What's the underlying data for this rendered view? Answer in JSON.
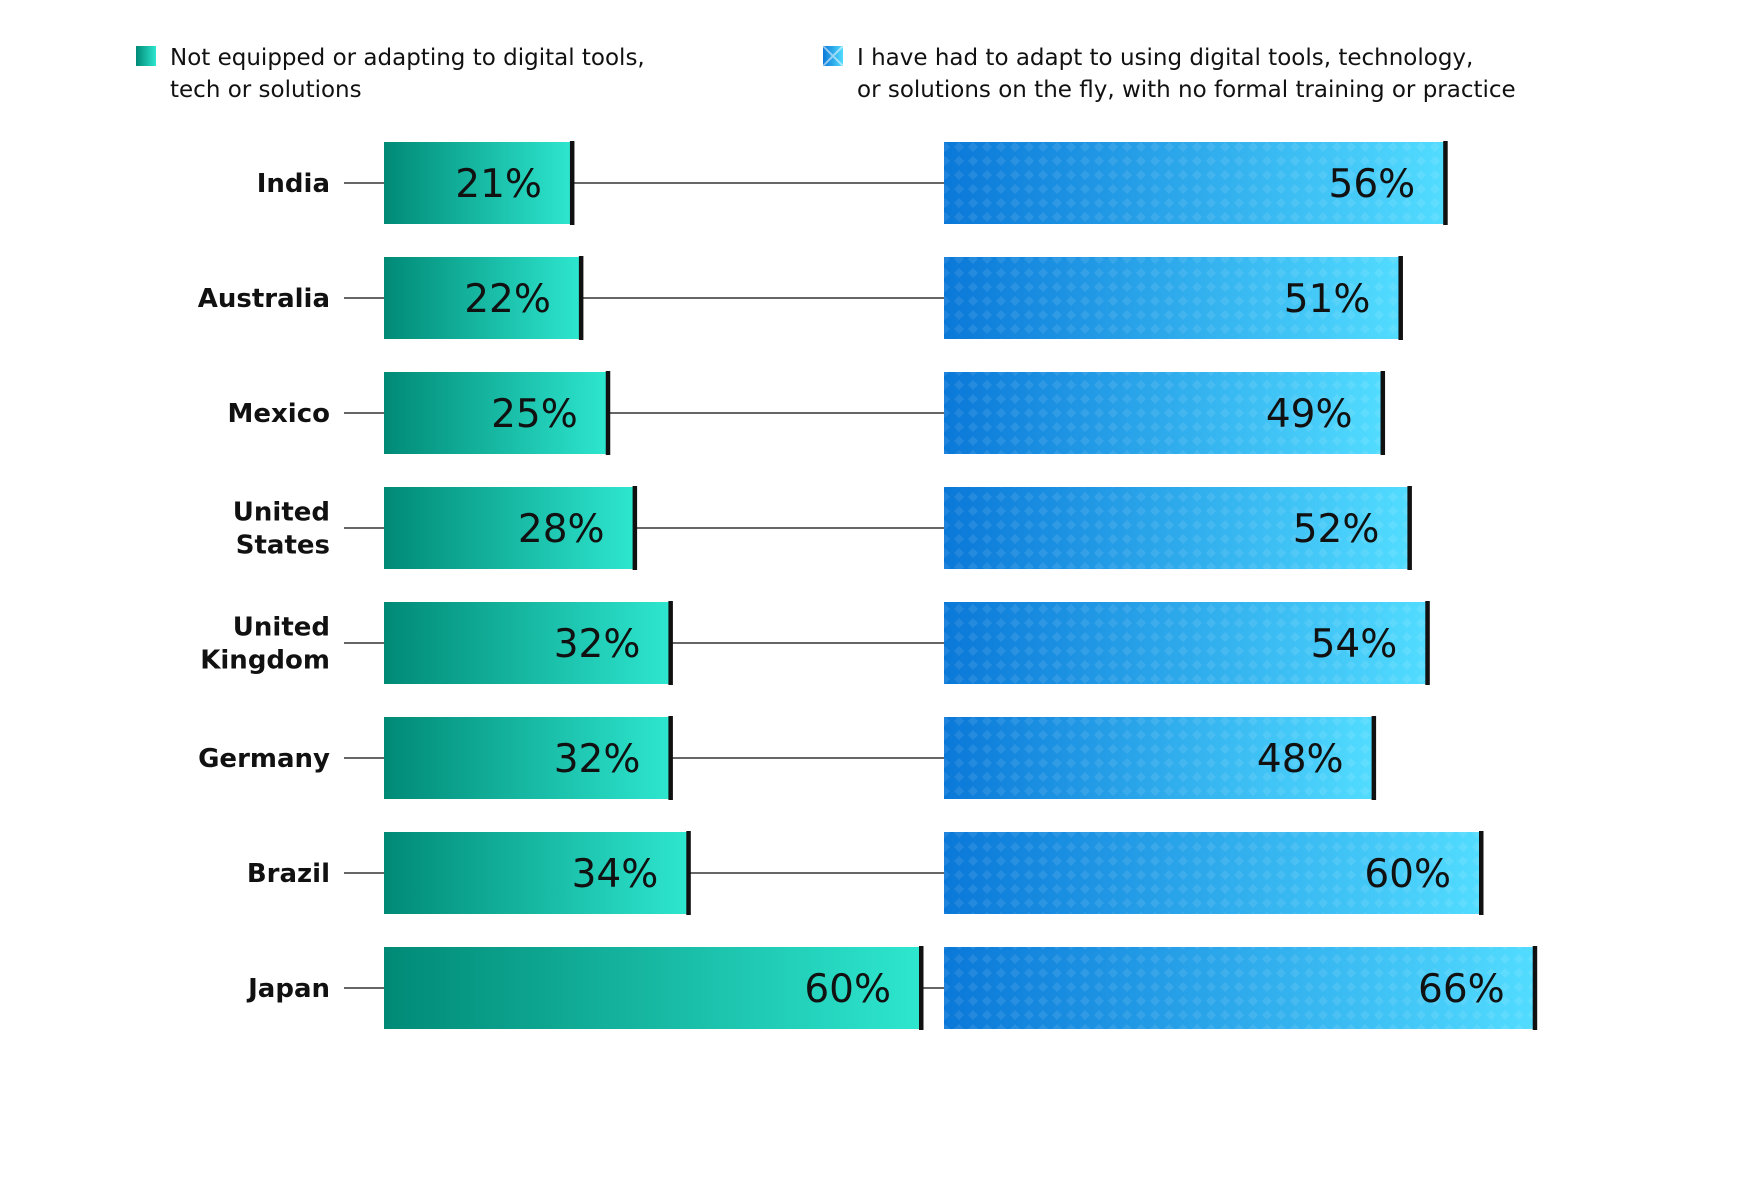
{
  "chart_data": {
    "type": "bar",
    "categories": [
      "India",
      "Australia",
      "Mexico",
      "United States",
      "United Kingdom",
      "Germany",
      "Brazil",
      "Japan"
    ],
    "category_lines": [
      [
        "India"
      ],
      [
        "Australia"
      ],
      [
        "Mexico"
      ],
      [
        "United",
        "States"
      ],
      [
        "United",
        "Kingdom"
      ],
      [
        "Germany"
      ],
      [
        "Brazil"
      ],
      [
        "Japan"
      ]
    ],
    "series": [
      {
        "name": "Not equipped or adapting to digital tools, tech or solutions",
        "legend_lines": [
          "Not equipped or adapting to digital tools,",
          "tech or solutions"
        ],
        "values": [
          21,
          22,
          25,
          28,
          32,
          32,
          34,
          60
        ],
        "labels": [
          "21%",
          "22%",
          "25%",
          "28%",
          "32%",
          "32%",
          "34%",
          "60%"
        ],
        "color_start": "#008a76",
        "color_end": "#2ee6cf"
      },
      {
        "name": "I have had to adapt to using digital tools, technology, or solutions on the fly, with no formal training or practice",
        "legend_lines": [
          "I have had to adapt to using digital tools, technology,",
          "or solutions on the fly, with no formal training or practice"
        ],
        "values": [
          56,
          51,
          49,
          52,
          54,
          48,
          60,
          66
        ],
        "labels": [
          "56%",
          "51%",
          "49%",
          "52%",
          "54%",
          "48%",
          "60%",
          "66%"
        ],
        "color_start": "#0a78d8",
        "color_end": "#52dcff"
      }
    ],
    "unit": "%",
    "legend_position": "top",
    "grid": false
  }
}
